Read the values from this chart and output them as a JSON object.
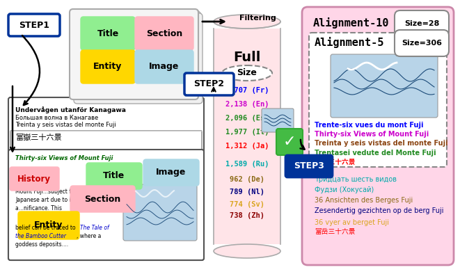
{
  "cylinder_data": [
    {
      "text": "2,707 (Fr)",
      "color": "#0000FF"
    },
    {
      "text": "2,138 (En)",
      "color": "#CC00CC"
    },
    {
      "text": "2,096 (Es)",
      "color": "#228B22"
    },
    {
      "text": "1,977 (It)",
      "color": "#228B22"
    },
    {
      "text": "1,312 (Ja)",
      "color": "#FF0000"
    },
    {
      "text": "1,589 (Ru)",
      "color": "#00AAAA"
    },
    {
      "text": "962 (De)",
      "color": "#8B6914"
    },
    {
      "text": "789 (Nl)",
      "color": "#000080"
    },
    {
      "text": "774 (Sv)",
      "color": "#DAA520"
    },
    {
      "text": "738 (Zh)",
      "color": "#8B0000"
    }
  ],
  "align5_texts": [
    {
      "text": "Trente-six vues du mont Fuji",
      "color": "#0000FF"
    },
    {
      "text": "Thirty-six Views of Mount Fuji",
      "color": "#CC00CC"
    },
    {
      "text": "Treinta y seis vistas del monte Fuji",
      "color": "#8B4513"
    },
    {
      "text": "Trentasei vedute del Monte Fuji",
      "color": "#228B22"
    },
    {
      "text": "富岳三十六景",
      "color": "#FF0000"
    }
  ],
  "align10_texts": [
    {
      "text": "Тридцать шесть видов",
      "color": "#00AAAA"
    },
    {
      "text": "Фудзи (Хокусай)",
      "color": "#00AAAA"
    },
    {
      "text": "36 Ansichten des Berges Fuji",
      "color": "#8B6914"
    },
    {
      "text": "Zesendertig gezichten op de berg Fuji",
      "color": "#000080"
    },
    {
      "text": "36 vyer av berget Fuji",
      "color": "#DAA520"
    },
    {
      "text": "富岳三十六景",
      "color": "#FF0000"
    }
  ],
  "bg_color": "#FFFFFF"
}
